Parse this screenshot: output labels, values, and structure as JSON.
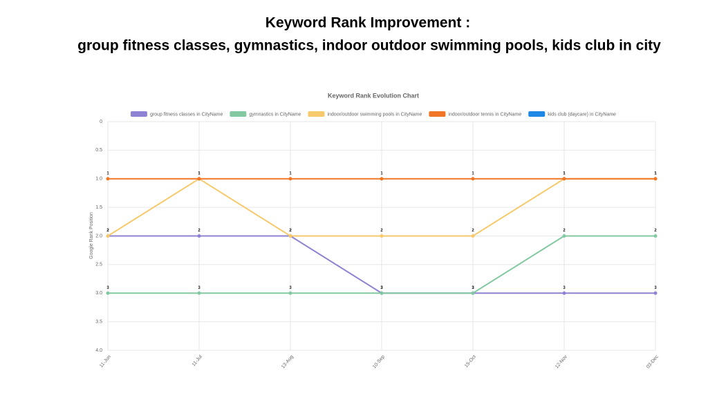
{
  "header": {
    "title_line1": "Keyword Rank Improvement :",
    "title_line2": "group fitness classes, gymnastics, indoor outdoor swimming pools, kids club in city"
  },
  "chart_data": {
    "type": "line",
    "title": "Keyword Rank Evolution Chart",
    "ylabel": "Google Rank Position",
    "categories": [
      "11-Jun",
      "11-Jul",
      "13-Aug",
      "10-Sep",
      "15-Oct",
      "12-Nov",
      "03-Dec"
    ],
    "ylim": [
      0,
      4
    ],
    "y_reversed": true,
    "yticks": [
      0,
      0.5,
      {
        "value": 1,
        "label": "1.0"
      },
      1.5,
      {
        "value": 2,
        "label": "2.0"
      },
      2.5,
      {
        "value": 3,
        "label": "3.0"
      },
      3.5,
      {
        "value": 4,
        "label": "4.0"
      }
    ],
    "grid": true,
    "legend": "top",
    "data_labels": true,
    "series": [
      {
        "name": "group fitness classes in CityName",
        "color": "#8e82d2",
        "values": [
          2,
          2,
          2,
          3,
          3,
          3,
          3
        ]
      },
      {
        "name": "gymnastics in CityName",
        "color": "#82c9a2",
        "values": [
          3,
          3,
          3,
          3,
          3,
          2,
          2
        ]
      },
      {
        "name": "indoor/outdoor swimming pools in CityName",
        "color": "#f6ca6c",
        "values": [
          2,
          1,
          2,
          2,
          2,
          1,
          1
        ]
      },
      {
        "name": "indoor/outdoor tennis in CityName",
        "color": "#f07524",
        "values": [
          1,
          1,
          1,
          1,
          1,
          1,
          1
        ]
      },
      {
        "name": "kids club (daycare) in CityName",
        "color": "#1e88e5",
        "values": [
          null,
          null,
          null,
          null,
          null,
          null,
          null
        ]
      }
    ]
  }
}
